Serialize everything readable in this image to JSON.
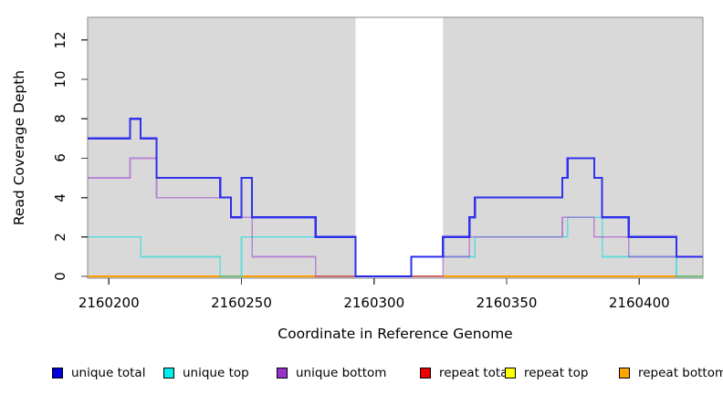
{
  "chart_data": {
    "type": "line",
    "subtype": "step-coverage-plot",
    "title": "",
    "xlabel": "Coordinate in Reference Genome",
    "ylabel": "Read Coverage Depth",
    "xlim": [
      2160192,
      2160424
    ],
    "ylim": [
      0,
      13.1
    ],
    "x_ticks": [
      2160200,
      2160250,
      2160300,
      2160350,
      2160400
    ],
    "y_ticks": [
      0,
      2,
      4,
      6,
      8,
      10,
      12
    ],
    "grid": false,
    "legend_position": "bottom",
    "plot_background": "#ffffff",
    "shaded_regions": [
      {
        "x_start": 2160192,
        "x_end": 2160293,
        "color": "#d9d9d9"
      },
      {
        "x_start": 2160326,
        "x_end": 2160424,
        "color": "#d9d9d9"
      }
    ],
    "x_end": 2160424,
    "series": [
      {
        "name": "unique total",
        "color": "#0000e0",
        "steps": [
          [
            2160192,
            7
          ],
          [
            2160208,
            8
          ],
          [
            2160212,
            7
          ],
          [
            2160218,
            5
          ],
          [
            2160242,
            4
          ],
          [
            2160246,
            3
          ],
          [
            2160250,
            5
          ],
          [
            2160254,
            3
          ],
          [
            2160278,
            2
          ],
          [
            2160293,
            0
          ],
          [
            2160314,
            1
          ],
          [
            2160326,
            2
          ],
          [
            2160336,
            3
          ],
          [
            2160338,
            4
          ],
          [
            2160371,
            5
          ],
          [
            2160373,
            6
          ],
          [
            2160383,
            5
          ],
          [
            2160386,
            3
          ],
          [
            2160396,
            2
          ],
          [
            2160414,
            1
          ]
        ]
      },
      {
        "name": "unique top",
        "color": "#00eeee",
        "steps": [
          [
            2160192,
            2
          ],
          [
            2160212,
            1
          ],
          [
            2160242,
            0
          ],
          [
            2160250,
            2
          ],
          [
            2160293,
            0
          ],
          [
            2160314,
            1
          ],
          [
            2160338,
            2
          ],
          [
            2160373,
            3
          ],
          [
            2160386,
            1
          ],
          [
            2160414,
            0
          ]
        ]
      },
      {
        "name": "unique bottom",
        "color": "#9932cc",
        "steps": [
          [
            2160192,
            5
          ],
          [
            2160208,
            6
          ],
          [
            2160218,
            4
          ],
          [
            2160246,
            3
          ],
          [
            2160254,
            1
          ],
          [
            2160278,
            0
          ],
          [
            2160326,
            1
          ],
          [
            2160336,
            2
          ],
          [
            2160371,
            3
          ],
          [
            2160383,
            2
          ],
          [
            2160396,
            1
          ]
        ]
      },
      {
        "name": "repeat total",
        "color": "#ee0000",
        "steps": [
          [
            2160192,
            0
          ]
        ]
      },
      {
        "name": "repeat top",
        "color": "#ffff00",
        "steps": [
          [
            2160192,
            0
          ]
        ]
      },
      {
        "name": "repeat bottom",
        "color": "#ffa500",
        "steps": [
          [
            2160192,
            0
          ]
        ]
      }
    ]
  }
}
